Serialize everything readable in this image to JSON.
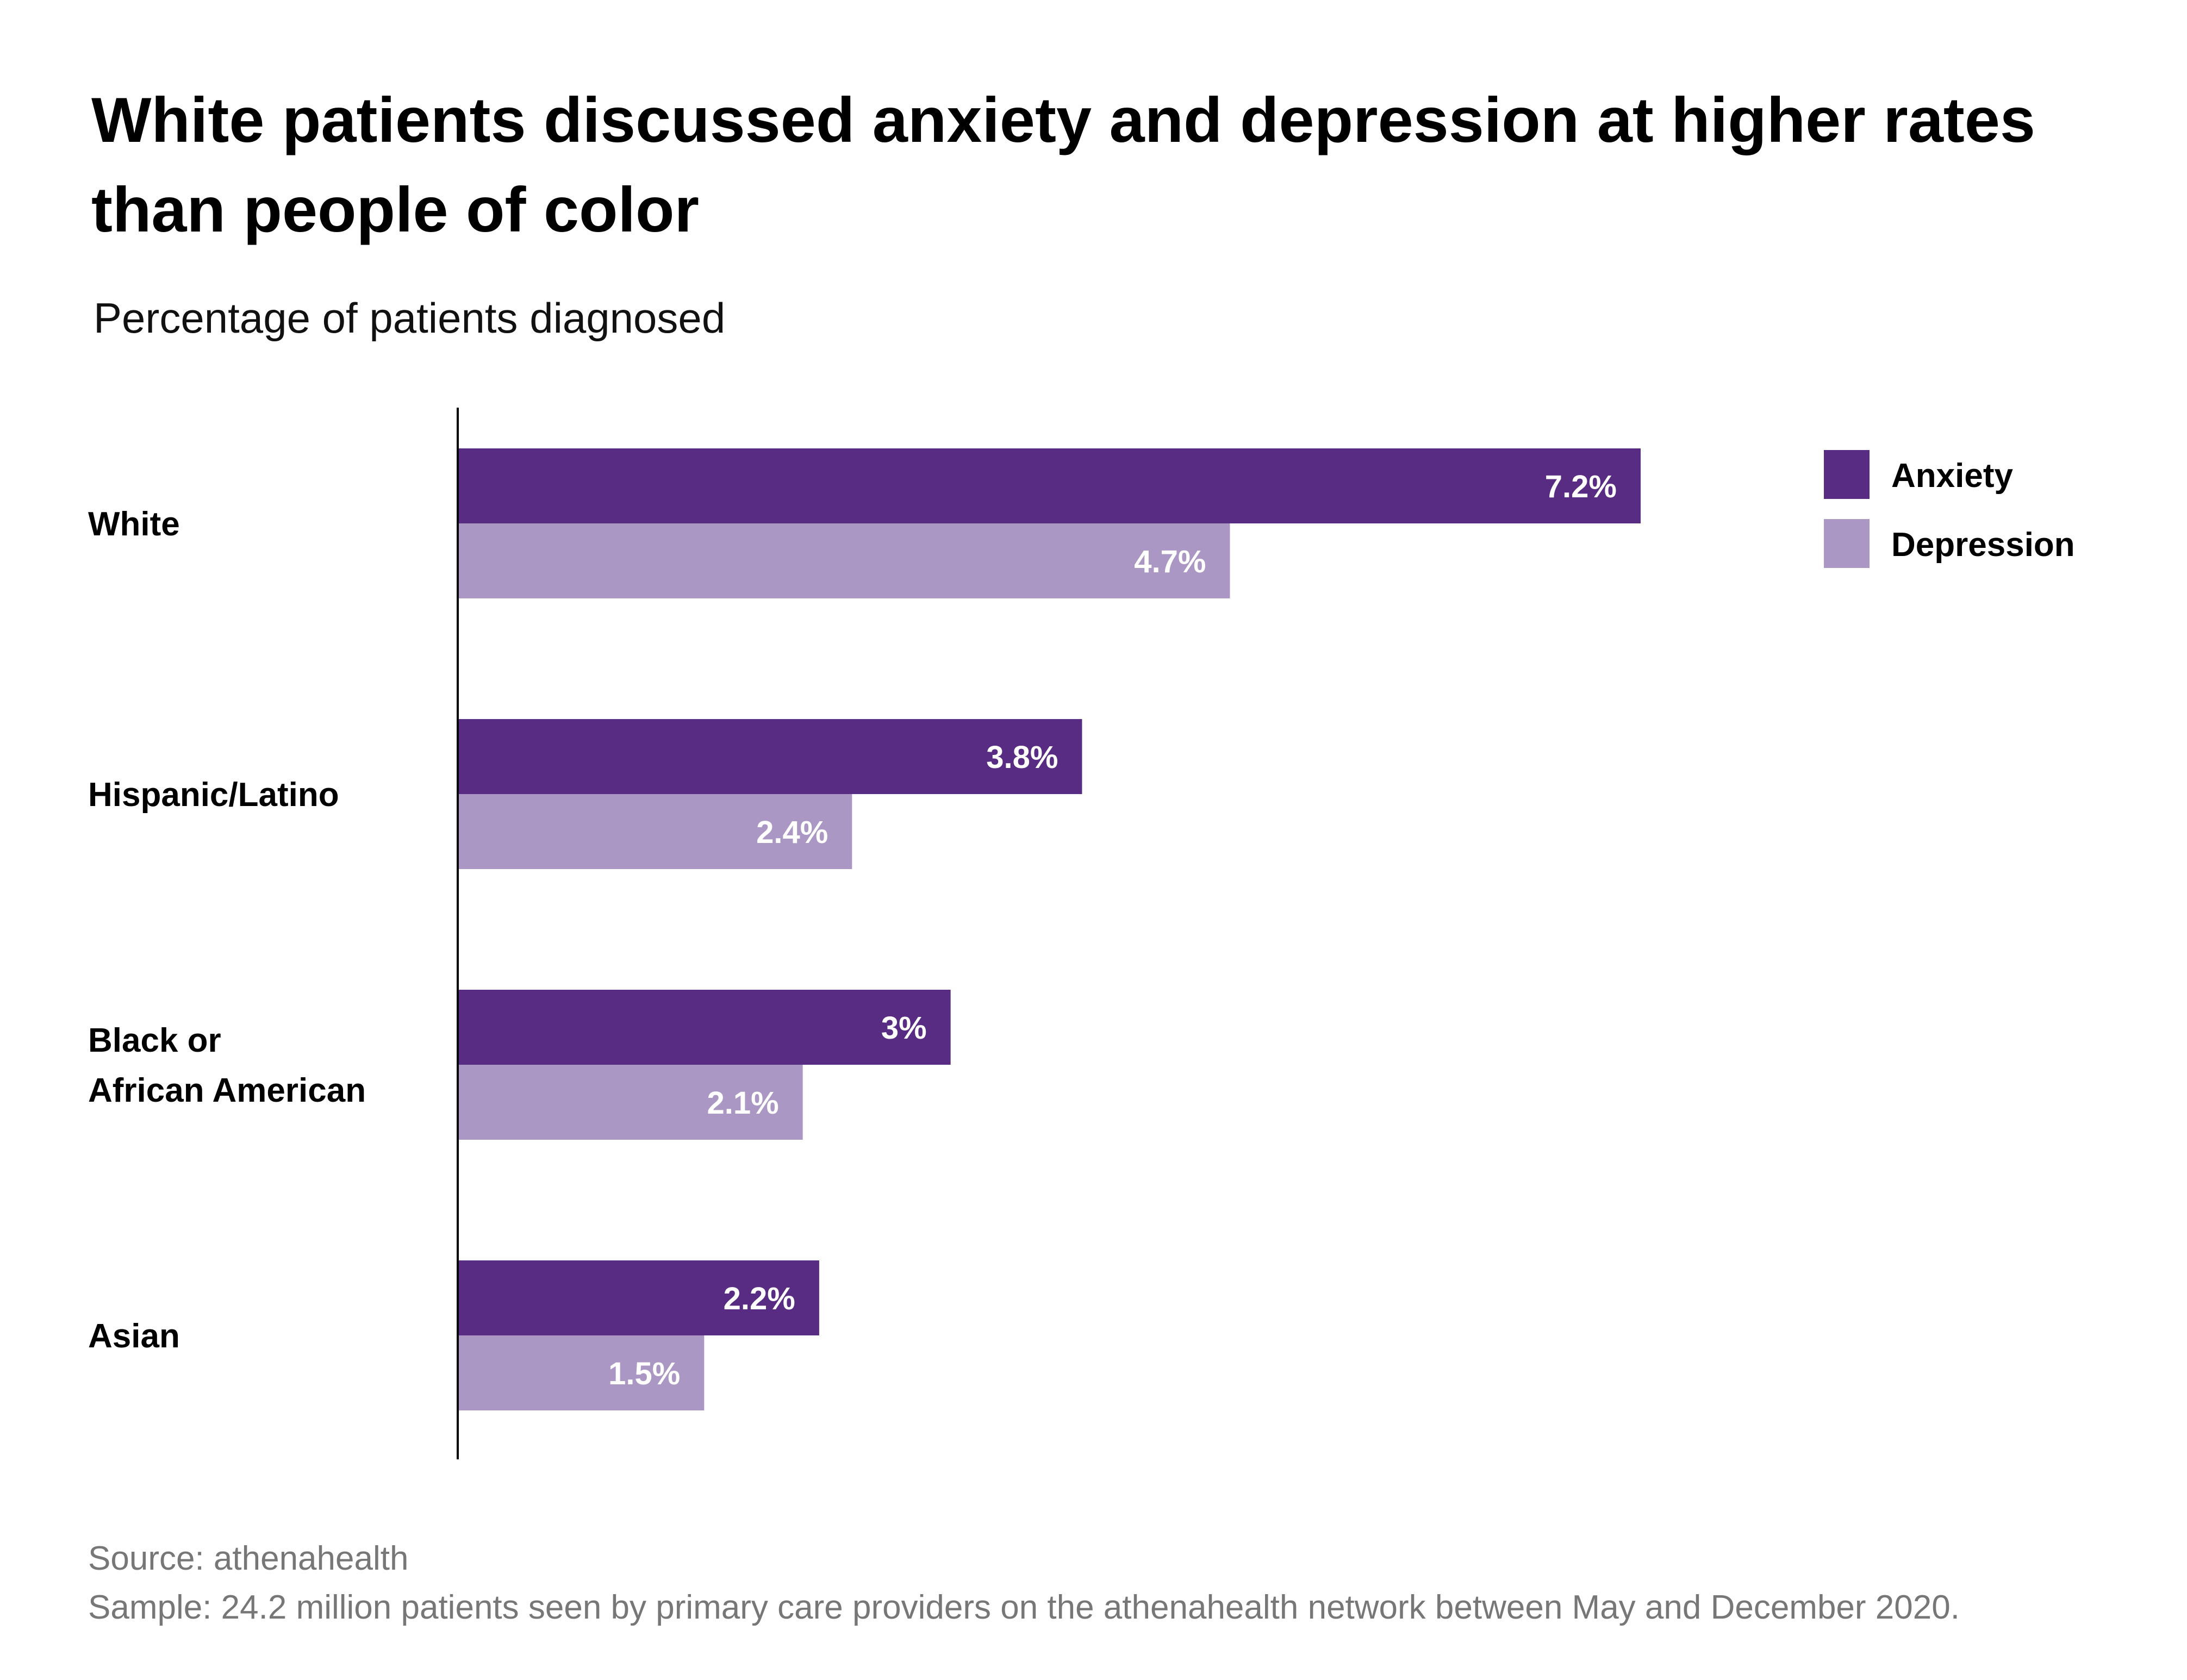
{
  "title": "White patients discussed anxiety and depression at higher rates than people of color",
  "subtitle": "Percentage of patients diagnosed",
  "footer": {
    "source": "Source: athenahealth",
    "sample": "Sample: 24.2 million patients seen by primary care providers on the athenahealth network between May and December 2020."
  },
  "chart_data": {
    "type": "bar",
    "orientation": "horizontal",
    "categories": [
      [
        "White"
      ],
      [
        "Hispanic/Latino"
      ],
      [
        "Black or",
        "African American"
      ],
      [
        "Asian"
      ]
    ],
    "series": [
      {
        "name": "Anxiety",
        "color": "#582c83",
        "values": [
          7.2,
          3.8,
          3.0,
          2.2
        ],
        "labels": [
          "7.2%",
          "3.8%",
          "3%",
          "2.2%"
        ]
      },
      {
        "name": "Depression",
        "color": "#ab97c3",
        "values": [
          4.7,
          2.4,
          2.1,
          1.5
        ],
        "labels": [
          "4.7%",
          "2.4%",
          "2.1%",
          "1.5%"
        ]
      }
    ],
    "xlim": [
      0,
      7.2
    ],
    "grid": false,
    "legend": "top-right",
    "axis_color": "#000000"
  }
}
